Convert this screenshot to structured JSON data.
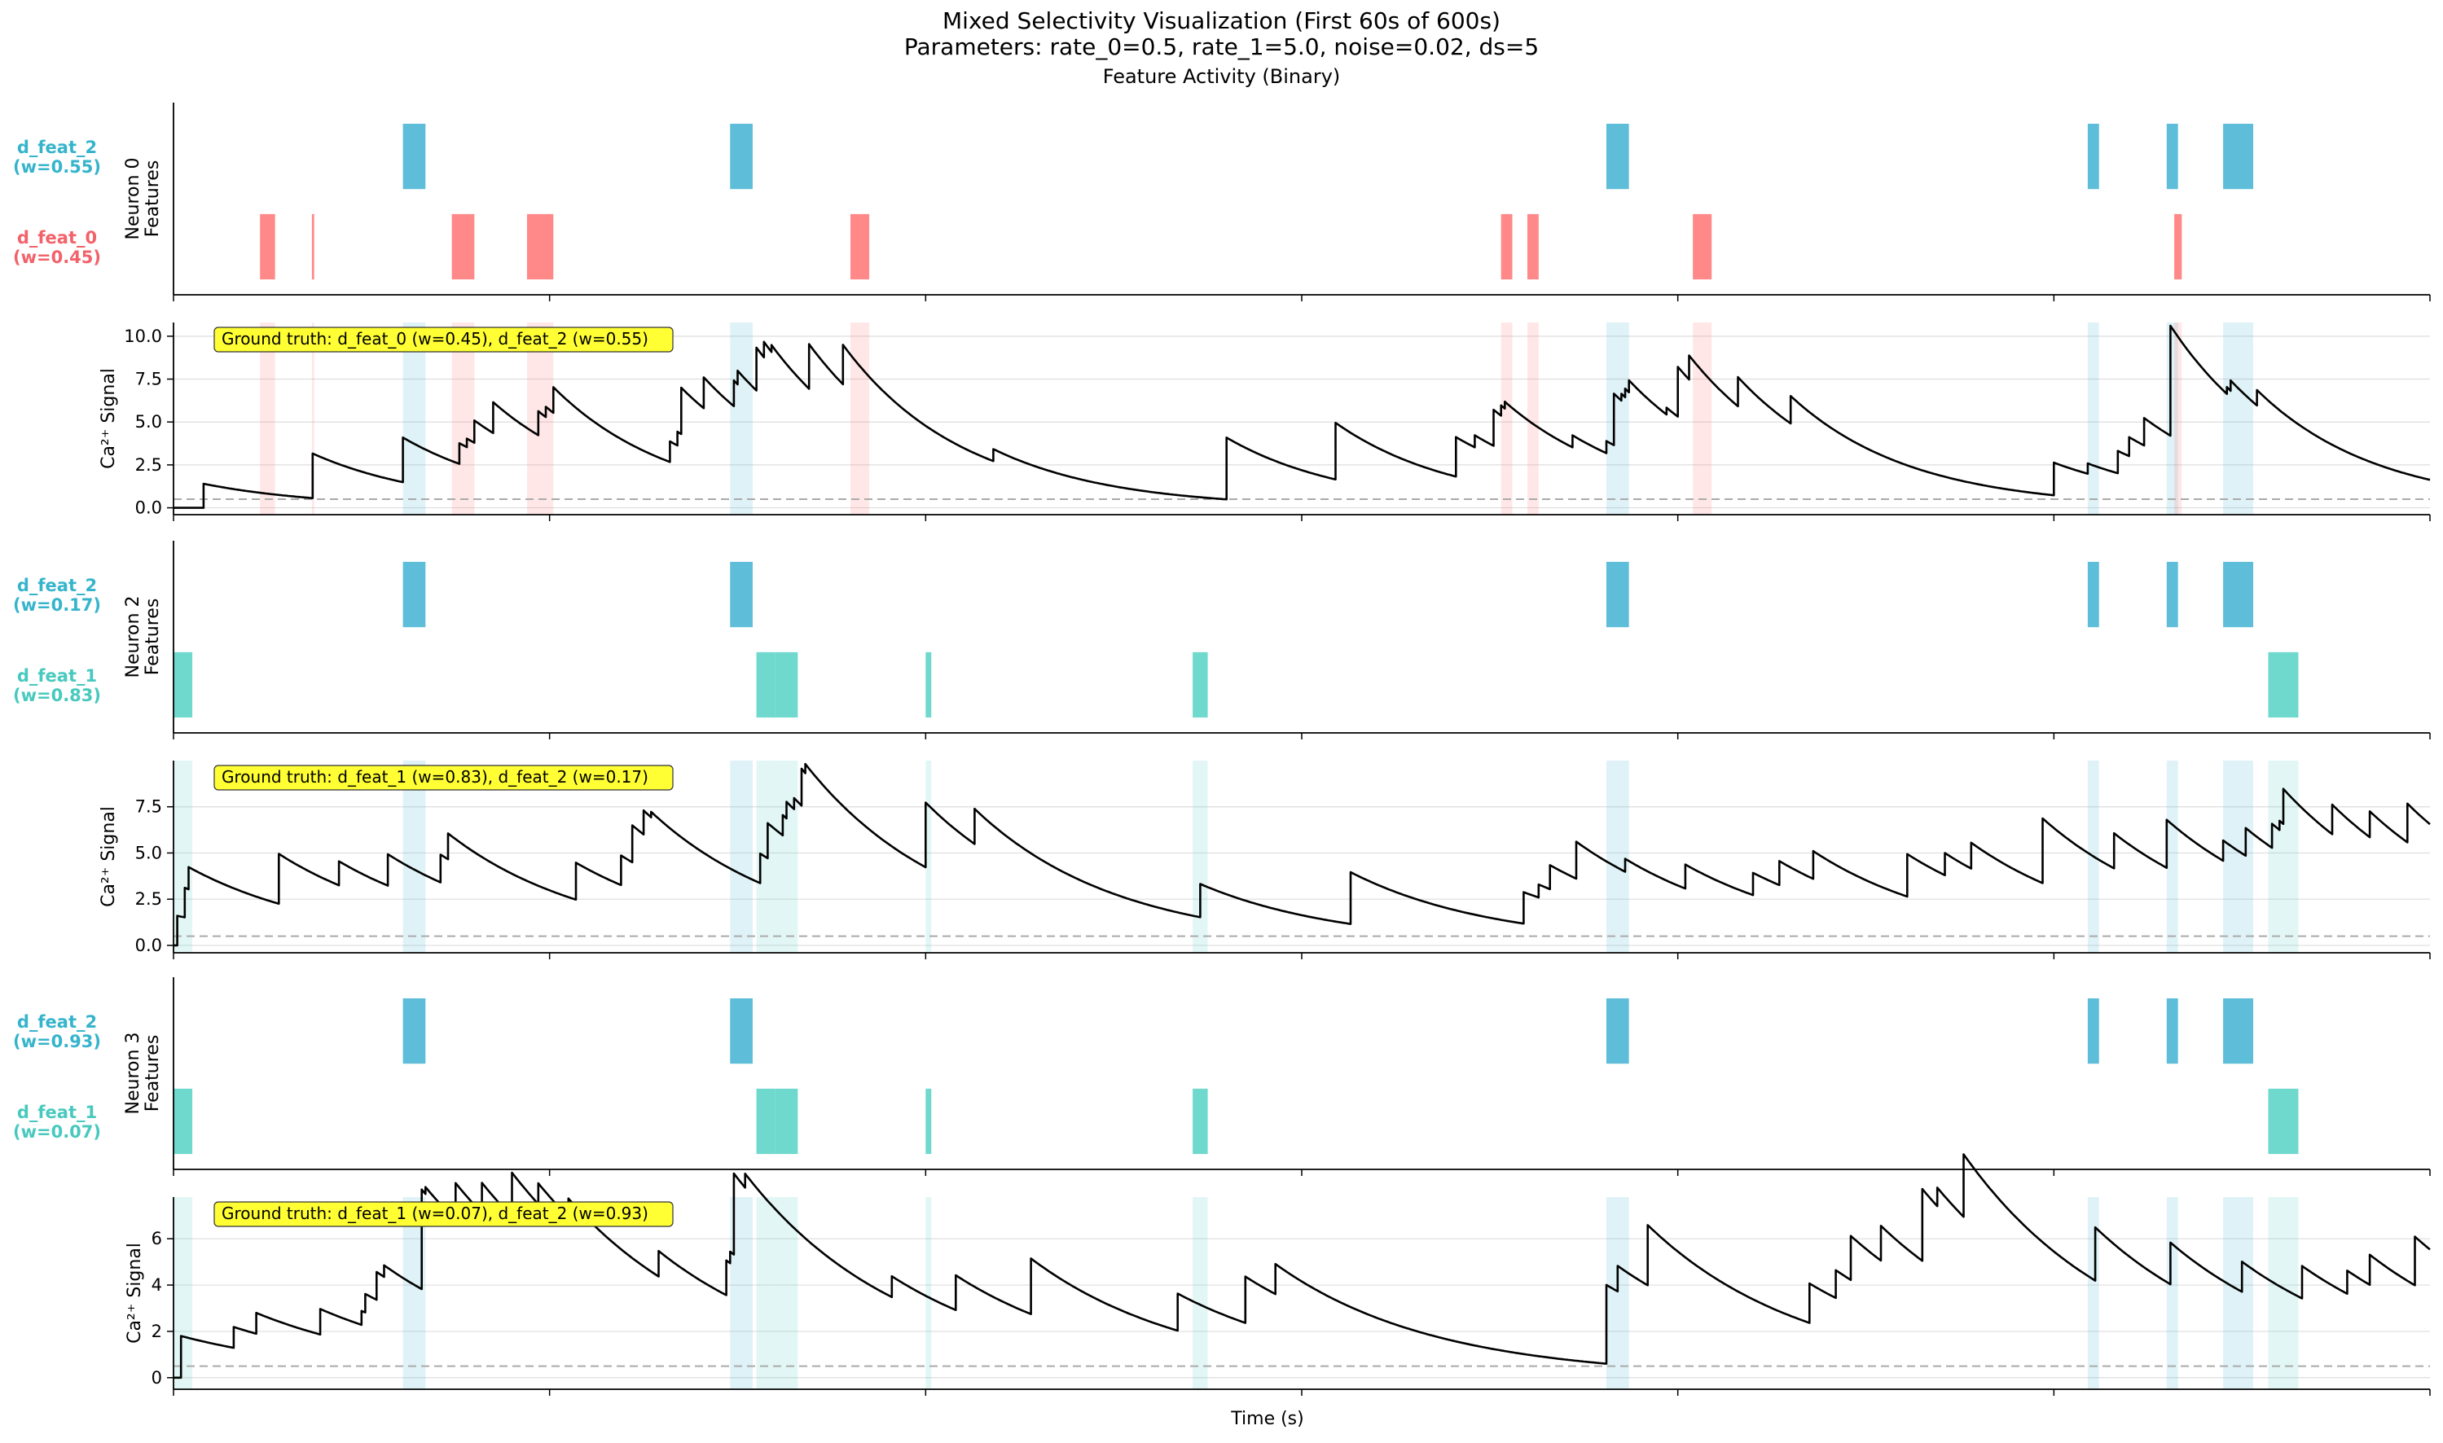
{
  "figure": {
    "title_line1": "Mixed Selectivity Visualization (First 60s of 600s)",
    "title_line2": "Parameters: rate_0=0.5, rate_1=5.0, noise=0.02, ds=5",
    "subtitle": "Feature Activity (Binary)",
    "xlabel": "Time (s)"
  },
  "colors": {
    "d_feat_0": "#ff7c7c",
    "d_feat_1": "#5fd5c8",
    "d_feat_2": "#4cb6d4",
    "label_feat_0": "#f2626a",
    "label_feat_1": "#48c9be",
    "label_feat_2": "#36b4cc",
    "trace": "#000000",
    "baseline": "#aaaaaa",
    "annotation_bg": "#ffff33"
  },
  "chart_data": [
    {
      "type": "raster",
      "neuron": "Neuron 0",
      "ylabel": "Neuron 0\nFeatures",
      "xlim": [
        0,
        60
      ],
      "rows": [
        {
          "feature": "d_feat_2",
          "label": "d_feat_2",
          "weight_label": "(w=0.55)",
          "intervals": [
            [
              6.1,
              6.7
            ],
            [
              14.8,
              15.4
            ],
            [
              38.1,
              38.7
            ],
            [
              50.9,
              51.2
            ],
            [
              53.0,
              53.3
            ],
            [
              54.5,
              55.3
            ]
          ]
        },
        {
          "feature": "d_feat_0",
          "label": "d_feat_0",
          "weight_label": "(w=0.45)",
          "intervals": [
            [
              2.3,
              2.7
            ],
            [
              3.68,
              3.74
            ],
            [
              7.4,
              8.0
            ],
            [
              9.4,
              10.1
            ],
            [
              18.0,
              18.5
            ],
            [
              35.3,
              35.6
            ],
            [
              36.0,
              36.3
            ],
            [
              40.4,
              40.9
            ],
            [
              53.2,
              53.4
            ]
          ]
        }
      ]
    },
    {
      "type": "line",
      "neuron": "Neuron 0",
      "ylabel": "Ca²⁺ Signal",
      "annotation": "Ground truth: d_feat_0 (w=0.45), d_feat_2 (w=0.55)",
      "ylim": [
        -0.4,
        10.8
      ],
      "yticks": [
        "0.0",
        "2.5",
        "5.0",
        "7.5",
        "10.0"
      ],
      "ytick_values": [
        0,
        2.5,
        5,
        7.5,
        10
      ],
      "grid": true,
      "baseline": 0.5,
      "tau": 3.2,
      "x0": 0,
      "y0": 0,
      "feature_rows_shaded": [
        "d_feat_0",
        "d_feat_2"
      ],
      "events": [
        [
          0.8,
          1.4
        ],
        [
          3.7,
          2.6
        ],
        [
          6.1,
          2.6
        ],
        [
          7.6,
          1.2
        ],
        [
          7.8,
          0.5
        ],
        [
          8.0,
          1.3
        ],
        [
          8.5,
          1.8
        ],
        [
          9.7,
          1.4
        ],
        [
          9.9,
          0.6
        ],
        [
          10.1,
          1.5
        ],
        [
          13.2,
          1.2
        ],
        [
          13.4,
          0.8
        ],
        [
          13.5,
          2.7
        ],
        [
          14.1,
          1.8
        ],
        [
          14.9,
          1.5
        ],
        [
          15.0,
          0.8
        ],
        [
          15.5,
          2.5
        ],
        [
          15.7,
          0.9
        ],
        [
          15.9,
          0.4
        ],
        [
          16.9,
          2.6
        ],
        [
          17.8,
          2.3
        ],
        [
          21.8,
          0.7
        ],
        [
          28.0,
          3.6
        ],
        [
          30.9,
          3.3
        ],
        [
          34.1,
          2.3
        ],
        [
          34.6,
          0.7
        ],
        [
          35.1,
          2.1
        ],
        [
          35.3,
          0.6
        ],
        [
          35.4,
          0.4
        ],
        [
          37.2,
          0.7
        ],
        [
          38.1,
          0.7
        ],
        [
          38.3,
          3.0
        ],
        [
          38.5,
          0.4
        ],
        [
          38.6,
          0.5
        ],
        [
          38.7,
          0.7
        ],
        [
          39.7,
          0.4
        ],
        [
          40.0,
          2.9
        ],
        [
          40.3,
          1.4
        ],
        [
          41.6,
          1.7
        ],
        [
          43.0,
          1.6
        ],
        [
          50.0,
          1.9
        ],
        [
          50.9,
          0.6
        ],
        [
          51.7,
          1.3
        ],
        [
          52.0,
          1.1
        ],
        [
          52.4,
          1.6
        ],
        [
          53.1,
          6.4
        ],
        [
          54.6,
          0.4
        ],
        [
          54.7,
          0.6
        ],
        [
          55.4,
          0.9
        ]
      ]
    },
    {
      "type": "raster",
      "neuron": "Neuron 2",
      "ylabel": "Neuron 2\nFeatures",
      "xlim": [
        0,
        60
      ],
      "rows": [
        {
          "feature": "d_feat_2",
          "label": "d_feat_2",
          "weight_label": "(w=0.17)",
          "intervals": [
            [
              6.1,
              6.7
            ],
            [
              14.8,
              15.4
            ],
            [
              38.1,
              38.7
            ],
            [
              50.9,
              51.2
            ],
            [
              53.0,
              53.3
            ],
            [
              54.5,
              55.3
            ]
          ]
        },
        {
          "feature": "d_feat_1",
          "label": "d_feat_1",
          "weight_label": "(w=0.83)",
          "intervals": [
            [
              0.0,
              0.5
            ],
            [
              15.5,
              16.0
            ],
            [
              16.0,
              16.6
            ],
            [
              20.0,
              20.15
            ],
            [
              27.1,
              27.5
            ],
            [
              55.7,
              56.5
            ]
          ]
        }
      ]
    },
    {
      "type": "line",
      "neuron": "Neuron 2",
      "ylabel": "Ca²⁺ Signal",
      "annotation": "Ground truth: d_feat_1 (w=0.83), d_feat_2 (w=0.17)",
      "ylim": [
        -0.4,
        10.0
      ],
      "yticks": [
        "0.0",
        "2.5",
        "5.0",
        "7.5"
      ],
      "ytick_values": [
        0,
        2.5,
        5,
        7.5
      ],
      "grid": true,
      "baseline": 0.5,
      "tau": 3.8,
      "x0": 0,
      "y0": 0,
      "feature_rows_shaded": [
        "d_feat_1",
        "d_feat_2"
      ],
      "events": [
        [
          0.1,
          1.6
        ],
        [
          0.3,
          1.6
        ],
        [
          0.4,
          1.2
        ],
        [
          2.8,
          2.7
        ],
        [
          4.4,
          1.3
        ],
        [
          5.7,
          1.7
        ],
        [
          7.1,
          1.5
        ],
        [
          7.3,
          1.4
        ],
        [
          10.7,
          2.0
        ],
        [
          11.9,
          1.6
        ],
        [
          12.2,
          2.0
        ],
        [
          12.5,
          1.3
        ],
        [
          12.7,
          0.3
        ],
        [
          15.6,
          1.6
        ],
        [
          15.8,
          1.9
        ],
        [
          16.2,
          1.1
        ],
        [
          16.3,
          0.9
        ],
        [
          16.5,
          0.6
        ],
        [
          16.7,
          2.0
        ],
        [
          16.8,
          0.5
        ],
        [
          20.0,
          3.5
        ],
        [
          21.3,
          1.9
        ],
        [
          27.3,
          1.8
        ],
        [
          31.3,
          2.8
        ],
        [
          35.9,
          1.7
        ],
        [
          36.3,
          0.7
        ],
        [
          36.6,
          1.3
        ],
        [
          37.3,
          2.0
        ],
        [
          38.6,
          0.7
        ],
        [
          40.2,
          1.3
        ],
        [
          42.0,
          1.2
        ],
        [
          42.7,
          1.3
        ],
        [
          43.6,
          1.5
        ],
        [
          46.1,
          2.3
        ],
        [
          47.1,
          1.2
        ],
        [
          47.8,
          1.4
        ],
        [
          49.7,
          3.5
        ],
        [
          51.6,
          1.9
        ],
        [
          53.0,
          2.6
        ],
        [
          54.5,
          1.1
        ],
        [
          55.1,
          1.5
        ],
        [
          55.8,
          1.3
        ],
        [
          56.0,
          0.5
        ],
        [
          56.1,
          1.9
        ],
        [
          57.4,
          1.6
        ],
        [
          58.4,
          1.4
        ],
        [
          59.4,
          2.1
        ]
      ]
    },
    {
      "type": "raster",
      "neuron": "Neuron 3",
      "ylabel": "Neuron 3\nFeatures",
      "xlim": [
        0,
        60
      ],
      "rows": [
        {
          "feature": "d_feat_2",
          "label": "d_feat_2",
          "weight_label": "(w=0.93)",
          "intervals": [
            [
              6.1,
              6.7
            ],
            [
              14.8,
              15.4
            ],
            [
              38.1,
              38.7
            ],
            [
              50.9,
              51.2
            ],
            [
              53.0,
              53.3
            ],
            [
              54.5,
              55.3
            ]
          ]
        },
        {
          "feature": "d_feat_1",
          "label": "d_feat_1",
          "weight_label": "(w=0.07)",
          "intervals": [
            [
              0.0,
              0.5
            ],
            [
              15.5,
              16.0
            ],
            [
              16.0,
              16.6
            ],
            [
              20.0,
              20.15
            ],
            [
              27.1,
              27.5
            ],
            [
              55.7,
              56.5
            ]
          ]
        }
      ]
    },
    {
      "type": "line",
      "neuron": "Neuron 3",
      "ylabel": "Ca²⁺ Signal",
      "annotation": "Ground truth: d_feat_1 (w=0.07), d_feat_2 (w=0.93)",
      "ylim": [
        -0.5,
        7.8
      ],
      "yticks": [
        "0",
        "2",
        "4",
        "6"
      ],
      "ytick_values": [
        0,
        2,
        4,
        6
      ],
      "grid": true,
      "baseline": 0.5,
      "tau": 4.2,
      "x0": 0,
      "y0": 0,
      "feature_rows_shaded": [
        "d_feat_1",
        "d_feat_2"
      ],
      "events": [
        [
          0.2,
          1.8
        ],
        [
          1.6,
          0.9
        ],
        [
          2.2,
          0.9
        ],
        [
          3.9,
          1.1
        ],
        [
          5.0,
          0.6
        ],
        [
          5.1,
          0.8
        ],
        [
          5.4,
          1.2
        ],
        [
          5.6,
          0.5
        ],
        [
          6.6,
          4.3
        ],
        [
          6.7,
          0.3
        ],
        [
          7.5,
          1.6
        ],
        [
          8.2,
          1.3
        ],
        [
          9.0,
          1.9
        ],
        [
          9.7,
          0.9
        ],
        [
          10.5,
          0.8
        ],
        [
          12.9,
          1.1
        ],
        [
          14.7,
          1.5
        ],
        [
          14.8,
          0.5
        ],
        [
          14.9,
          3.5
        ],
        [
          15.2,
          0.6
        ],
        [
          19.1,
          0.9
        ],
        [
          20.8,
          1.5
        ],
        [
          22.8,
          2.4
        ],
        [
          26.7,
          1.6
        ],
        [
          28.5,
          2.0
        ],
        [
          29.3,
          1.3
        ],
        [
          38.1,
          3.4
        ],
        [
          38.4,
          1.1
        ],
        [
          39.2,
          2.6
        ],
        [
          43.5,
          1.7
        ],
        [
          44.2,
          1.2
        ],
        [
          44.6,
          1.9
        ],
        [
          45.4,
          1.5
        ],
        [
          46.5,
          3.1
        ],
        [
          46.9,
          0.8
        ],
        [
          47.6,
          2.7
        ],
        [
          51.1,
          2.3
        ],
        [
          53.1,
          1.8
        ],
        [
          55.0,
          1.3
        ],
        [
          56.6,
          1.4
        ],
        [
          57.8,
          1.0
        ],
        [
          58.4,
          1.3
        ],
        [
          59.6,
          2.1
        ]
      ]
    }
  ]
}
